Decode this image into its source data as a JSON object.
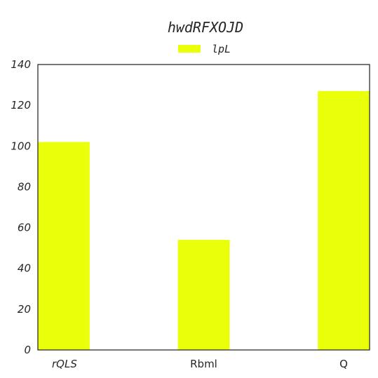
{
  "chart_data": {
    "type": "bar",
    "title": "hwdRFXOJD",
    "categories": [
      "rQLS",
      "Rbml",
      "Q"
    ],
    "category_italic": [
      true,
      false,
      false
    ],
    "series": [
      {
        "name": "lpL",
        "values": [
          102,
          54,
          127
        ],
        "color": "#eaff0a"
      }
    ],
    "xlabel": "",
    "ylabel": "",
    "ylim": [
      0,
      140
    ],
    "yticks": [
      0,
      20,
      40,
      60,
      80,
      100,
      120,
      140
    ],
    "grid": false,
    "legend": "top-center"
  }
}
